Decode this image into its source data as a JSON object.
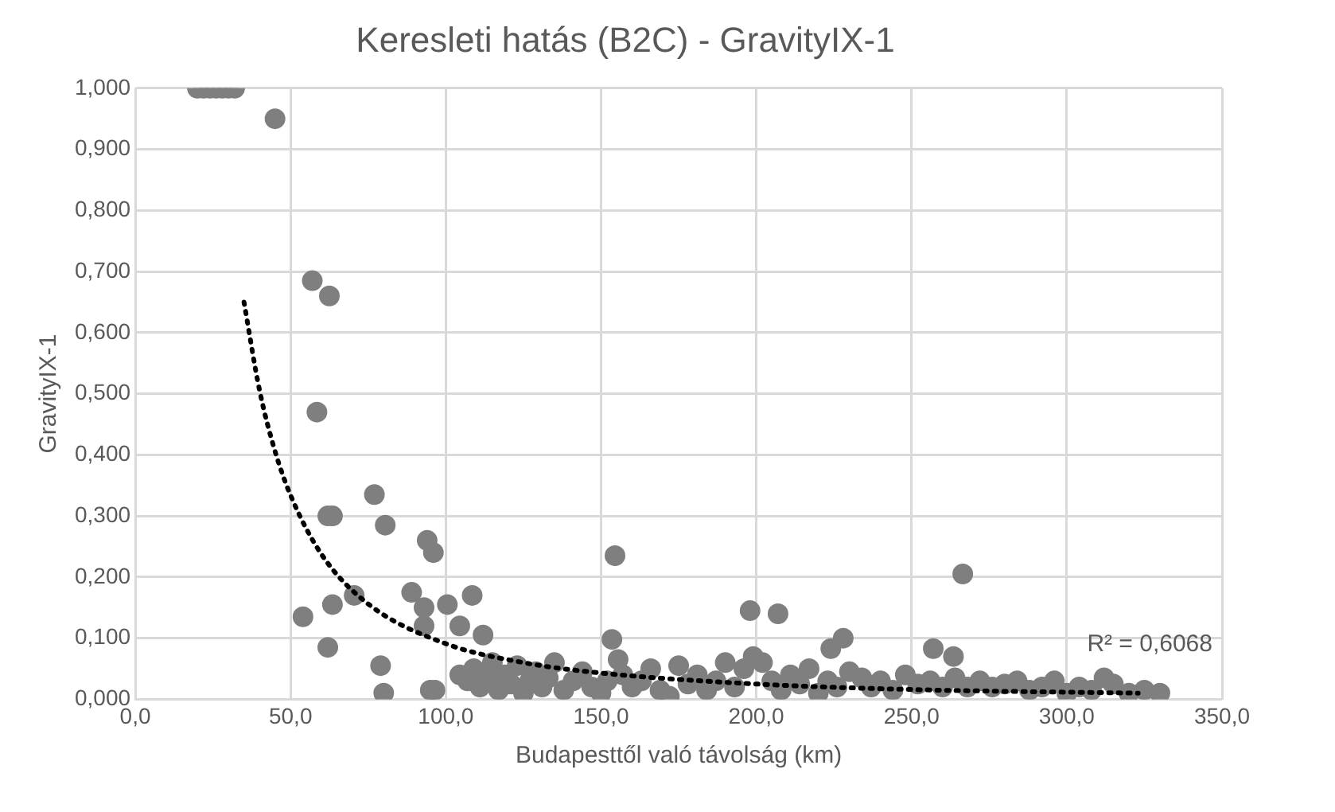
{
  "chart_data": {
    "type": "scatter",
    "title": "Keresleti hatás (B2C) - GravityIX-1",
    "xlabel": "Budapesttől való távolság (km)",
    "ylabel": "GravityIX-1",
    "xlim": [
      0,
      350
    ],
    "xticks": [
      {
        "value": 0,
        "label": "0,0"
      },
      {
        "value": 50,
        "label": "50,0"
      },
      {
        "value": 100,
        "label": "100,0"
      },
      {
        "value": 150,
        "label": "150,0"
      },
      {
        "value": 200,
        "label": "200,0"
      },
      {
        "value": 250,
        "label": "250,0"
      },
      {
        "value": 300,
        "label": "300,0"
      },
      {
        "value": 350,
        "label": "350,0"
      }
    ],
    "ylim": [
      0,
      1
    ],
    "yticks": [
      {
        "value": 0,
        "label": "0,000"
      },
      {
        "value": 0.1,
        "label": "0,100"
      },
      {
        "value": 0.2,
        "label": "0,200"
      },
      {
        "value": 0.3,
        "label": "0,300"
      },
      {
        "value": 0.4,
        "label": "0,400"
      },
      {
        "value": 0.5,
        "label": "0,500"
      },
      {
        "value": 0.6,
        "label": "0,600"
      },
      {
        "value": 0.7,
        "label": "0,700"
      },
      {
        "value": 0.8,
        "label": "0,800"
      },
      {
        "value": 0.9,
        "label": "0,900"
      },
      {
        "value": 1,
        "label": "1,000"
      }
    ],
    "grid": true,
    "legend": false,
    "annotations": [
      "R² = 0,6068"
    ],
    "series": [
      {
        "marker": "circle",
        "color": "#7f7f7f",
        "x": [
          20,
          22,
          24,
          26,
          28,
          30,
          32,
          45,
          57,
          62.5,
          58.5,
          62,
          63.5,
          54,
          63.5,
          62,
          77,
          80.5,
          70.5,
          79,
          80,
          94,
          96,
          89,
          93,
          93,
          95,
          154.5,
          198,
          207,
          108.5,
          100.5,
          104.5,
          112,
          153.5,
          155.5,
          224,
          228,
          96.5,
          104.5,
          266.5,
          257,
          263.5,
          107,
          109,
          111,
          113,
          115,
          117,
          119,
          121,
          123,
          125,
          127,
          129,
          131,
          133,
          135,
          138,
          141,
          144,
          147,
          150,
          152,
          157,
          160,
          163,
          166,
          169,
          172,
          175,
          178,
          181,
          184,
          187,
          190,
          193,
          196,
          199,
          202,
          205,
          208,
          211,
          214,
          217,
          220,
          223,
          226,
          230,
          234,
          237,
          240,
          244,
          248,
          252,
          256,
          260,
          264,
          268,
          272,
          276,
          280,
          284,
          288,
          292,
          296,
          300,
          304,
          308,
          312,
          315,
          320,
          325,
          330
        ],
        "values": [
          1,
          1,
          1,
          1,
          1,
          1,
          1,
          0.95,
          0.685,
          0.66,
          0.47,
          0.3,
          0.3,
          0.135,
          0.155,
          0.085,
          0.335,
          0.285,
          0.17,
          0.055,
          0.01,
          0.26,
          0.24,
          0.175,
          0.15,
          0.12,
          0.015,
          0.235,
          0.145,
          0.14,
          0.17,
          0.155,
          0.12,
          0.105,
          0.098,
          0.065,
          0.083,
          0.1,
          0.015,
          0.04,
          0.205,
          0.083,
          0.07,
          0.03,
          0.05,
          0.02,
          0.035,
          0.06,
          0.015,
          0.04,
          0.025,
          0.055,
          0.01,
          0.03,
          0.045,
          0.02,
          0.035,
          0.06,
          0.015,
          0.03,
          0.045,
          0.02,
          0.01,
          0.03,
          0.04,
          0.02,
          0.03,
          0.05,
          0.015,
          0.005,
          0.055,
          0.025,
          0.04,
          0.015,
          0.03,
          0.06,
          0.02,
          0.05,
          0.07,
          0.06,
          0.03,
          0.015,
          0.04,
          0.025,
          0.05,
          0.01,
          0.03,
          0.02,
          0.045,
          0.035,
          0.02,
          0.03,
          0.015,
          0.04,
          0.025,
          0.03,
          0.02,
          0.035,
          0.02,
          0.03,
          0.02,
          0.025,
          0.03,
          0.015,
          0.02,
          0.03,
          0.01,
          0.02,
          0.015,
          0.035,
          0.025,
          0.01,
          0.015,
          0.01
        ]
      },
      {
        "type": "line",
        "marker": "none",
        "line_style": "dotted",
        "color": "#000000",
        "x": [
          35,
          40,
          45,
          50,
          60,
          75,
          100,
          125,
          150,
          200,
          250,
          323
        ],
        "values": [
          0.65,
          0.506,
          0.406,
          0.334,
          0.237,
          0.156,
          0.091,
          0.06,
          0.043,
          0.025,
          0.016,
          0.01
        ]
      }
    ]
  }
}
